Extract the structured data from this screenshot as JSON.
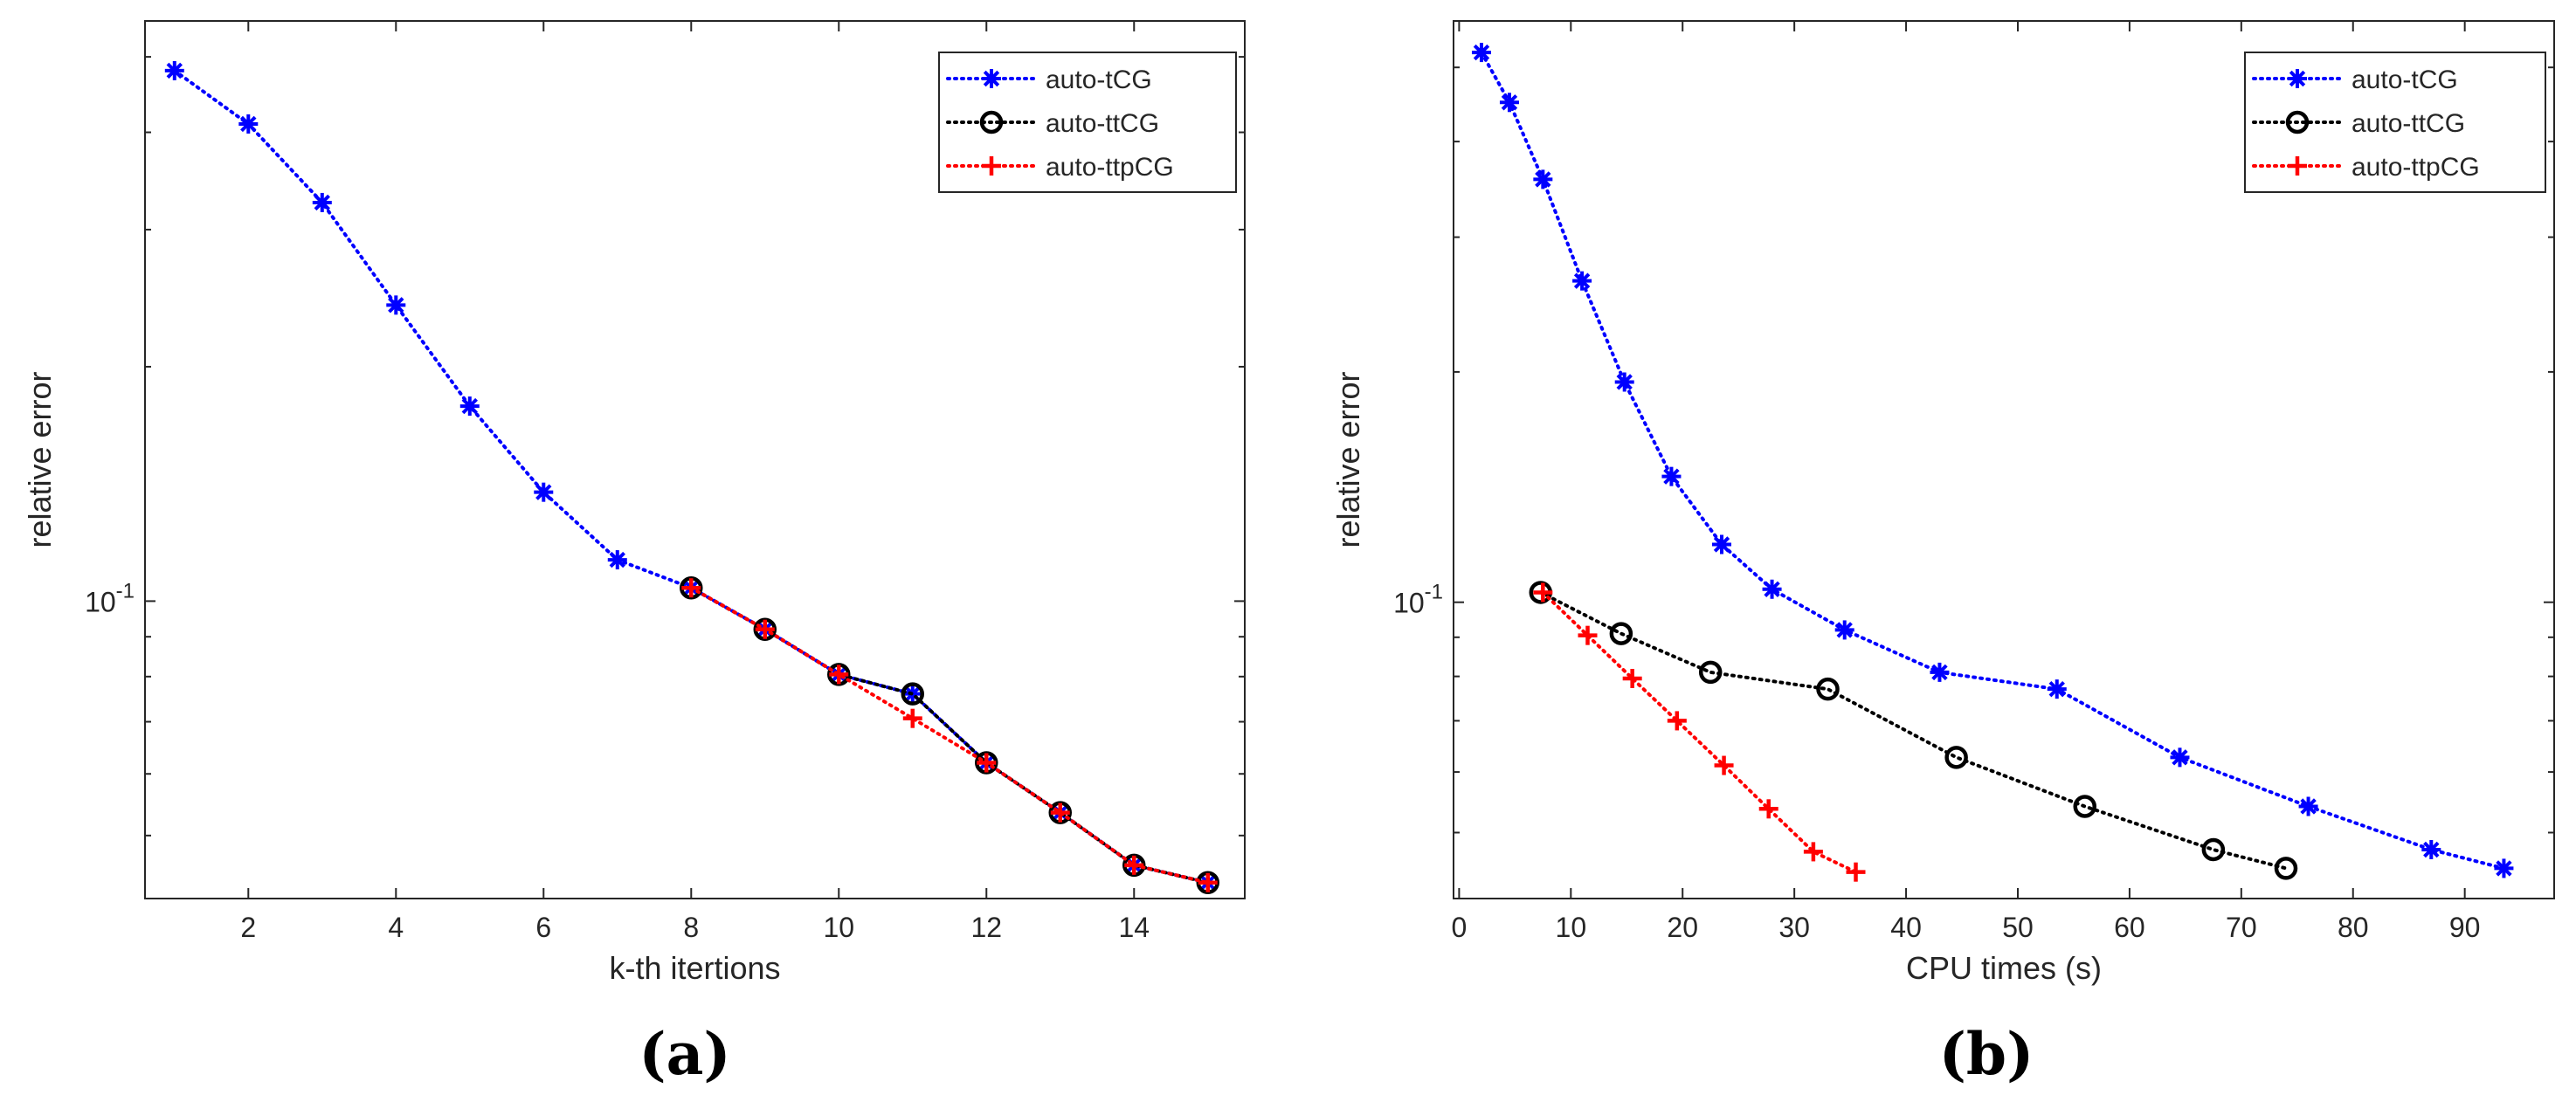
{
  "panels": [
    {
      "id": "a",
      "label_open": "(",
      "label_letter": "a",
      "label_close": ")"
    },
    {
      "id": "b",
      "label_open": "(",
      "label_letter": "b",
      "label_close": ")"
    }
  ],
  "colors": {
    "auto_tCG": "#0000ff",
    "auto_ttCG": "#000000",
    "auto_ttpCG": "#ff0000",
    "axis": "#262626"
  },
  "chart_data": [
    {
      "type": "line",
      "panel": "a",
      "title": "",
      "xlabel": "k-th itertions",
      "ylabel": "relative error",
      "yscale": "log",
      "xlim": [
        0.6,
        15.5
      ],
      "ylim": [
        0.0415,
        0.556
      ],
      "xticks": [
        2,
        4,
        6,
        8,
        10,
        12,
        14
      ],
      "xtick_labels": [
        "2",
        "4",
        "6",
        "8",
        "10",
        "12",
        "14"
      ],
      "yticks": [
        0.1
      ],
      "ytick_labels": [
        {
          "base": "10",
          "exp": "-1"
        }
      ],
      "legend_position": "top-right",
      "series": [
        {
          "name": "auto-tCG",
          "marker": "asterisk",
          "color": "#0000ff",
          "x": [
            1,
            2,
            3,
            4,
            5,
            6,
            7,
            8,
            9,
            10,
            11,
            12,
            13,
            14,
            15
          ],
          "y": [
            0.48,
            0.41,
            0.325,
            0.24,
            0.178,
            0.138,
            0.113,
            0.104,
            0.092,
            0.0805,
            0.076,
            0.062,
            0.0535,
            0.0458,
            0.0435
          ]
        },
        {
          "name": "auto-ttCG",
          "marker": "circle",
          "color": "#000000",
          "x": [
            8,
            9,
            10,
            11,
            12,
            13,
            14,
            15
          ],
          "y": [
            0.104,
            0.092,
            0.0805,
            0.076,
            0.062,
            0.0535,
            0.0458,
            0.0435
          ]
        },
        {
          "name": "auto-ttpCG",
          "marker": "plus",
          "color": "#ff0000",
          "x": [
            8,
            9,
            10,
            11,
            12,
            13,
            14,
            15
          ],
          "y": [
            0.104,
            0.092,
            0.0805,
            0.0707,
            0.062,
            0.0535,
            0.0458,
            0.0435
          ]
        }
      ]
    },
    {
      "type": "line",
      "panel": "b",
      "title": "",
      "xlabel": "CPU times (s)",
      "ylabel": "relative error",
      "yscale": "log",
      "xlim": [
        -0.5,
        98
      ],
      "ylim": [
        0.041,
        0.575
      ],
      "xticks": [
        0,
        10,
        20,
        30,
        40,
        50,
        60,
        70,
        80,
        90
      ],
      "xtick_labels": [
        "0",
        "10",
        "20",
        "30",
        "40",
        "50",
        "60",
        "70",
        "80",
        "90"
      ],
      "yticks": [
        0.1
      ],
      "ytick_labels": [
        {
          "base": "10",
          "exp": "-1"
        }
      ],
      "legend_position": "top-right",
      "series": [
        {
          "name": "auto-tCG",
          "marker": "asterisk",
          "color": "#0000ff",
          "x": [
            2,
            4.5,
            7.5,
            11,
            14.8,
            19,
            23.5,
            28,
            34.5,
            43,
            53.5,
            64.5,
            76,
            87,
            93.5
          ],
          "y": [
            0.523,
            0.45,
            0.357,
            0.263,
            0.194,
            0.146,
            0.119,
            0.104,
            0.092,
            0.081,
            0.077,
            0.0627,
            0.0541,
            0.0475,
            0.0449
          ]
        },
        {
          "name": "auto-ttCG",
          "marker": "circle",
          "color": "#000000",
          "x": [
            7.3,
            14.5,
            22.5,
            33,
            44.5,
            56,
            67.5,
            74
          ],
          "y": [
            0.103,
            0.091,
            0.081,
            0.077,
            0.0627,
            0.0541,
            0.0475,
            0.0449
          ]
        },
        {
          "name": "auto-ttpCG",
          "marker": "plus",
          "color": "#ff0000",
          "x": [
            7.5,
            11.5,
            15.5,
            19.5,
            23.7,
            27.7,
            31.7,
            35.5
          ],
          "y": [
            0.103,
            0.0905,
            0.0795,
            0.07,
            0.0612,
            0.0537,
            0.0472,
            0.0444
          ]
        }
      ]
    }
  ]
}
